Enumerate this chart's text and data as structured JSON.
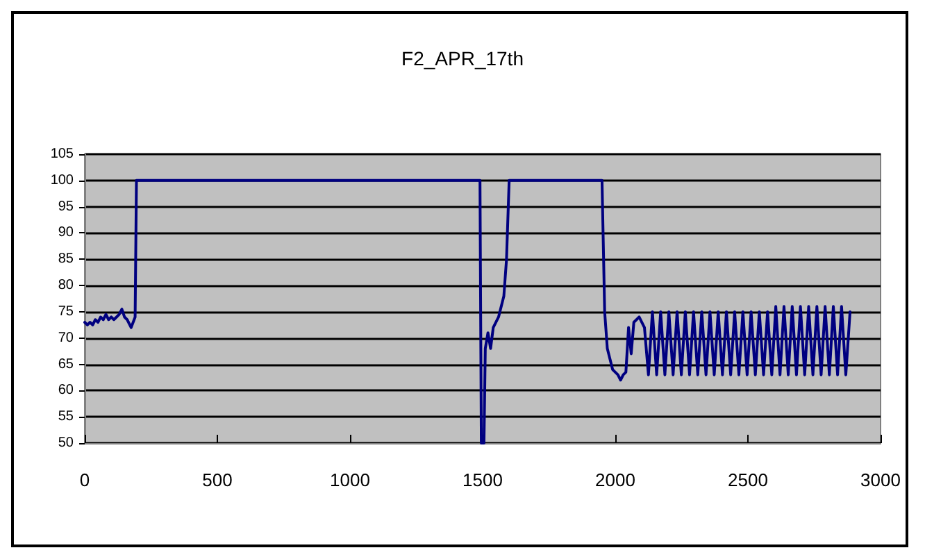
{
  "chart_data": {
    "type": "line",
    "title": "F2_APR_17th",
    "x": [
      0,
      10,
      20,
      30,
      40,
      50,
      60,
      70,
      80,
      90,
      100,
      110,
      120,
      130,
      140,
      150,
      160,
      175,
      190,
      195,
      1490,
      1495,
      1505,
      1510,
      1520,
      1530,
      1540,
      1560,
      1580,
      1590,
      1600,
      1950,
      1960,
      1970,
      1990,
      2010,
      2020,
      2030,
      2040,
      2050,
      2060,
      2070,
      2080,
      2090,
      2110,
      2125,
      2140,
      2156,
      2171,
      2187,
      2202,
      2218,
      2233,
      2249,
      2264,
      2280,
      2295,
      2311,
      2326,
      2342,
      2357,
      2373,
      2388,
      2404,
      2419,
      2435,
      2450,
      2466,
      2481,
      2497,
      2512,
      2528,
      2543,
      2559,
      2574,
      2590,
      2605,
      2621,
      2636,
      2652,
      2667,
      2683,
      2698,
      2714,
      2729,
      2745,
      2760,
      2776,
      2791,
      2807,
      2822,
      2838,
      2853,
      2869,
      2885
    ],
    "series": [
      {
        "color": "#000080",
        "values": [
          73,
          72.5,
          73,
          72.5,
          73.5,
          73,
          74,
          73.5,
          74.5,
          73.5,
          74,
          73.5,
          74,
          74.5,
          75.5,
          74,
          73.5,
          72,
          74,
          100,
          100,
          50,
          50,
          68,
          71,
          68,
          72,
          74,
          78,
          85,
          100,
          100,
          75,
          68,
          64,
          63,
          62,
          63,
          63.5,
          72,
          67,
          73,
          73.5,
          74,
          72,
          63,
          75,
          63,
          75,
          63,
          75,
          63,
          75,
          63,
          75,
          63,
          75,
          63,
          75,
          63,
          75,
          63,
          75,
          63,
          75,
          63,
          75,
          63,
          75,
          63,
          75,
          63,
          75,
          63,
          75,
          63,
          76,
          63,
          76,
          63,
          76,
          63,
          76,
          63,
          76,
          63,
          76,
          63,
          76,
          63,
          76,
          63,
          76,
          63,
          75
        ]
      }
    ],
    "xlim": [
      0,
      3000
    ],
    "xticks": [
      0,
      500,
      1000,
      1500,
      2000,
      2500,
      3000
    ],
    "ylim": [
      50,
      105
    ],
    "yticks": [
      50,
      55,
      60,
      65,
      70,
      75,
      80,
      85,
      90,
      95,
      100,
      105
    ],
    "grid": "y",
    "marker": "none",
    "line_style": "solid"
  }
}
